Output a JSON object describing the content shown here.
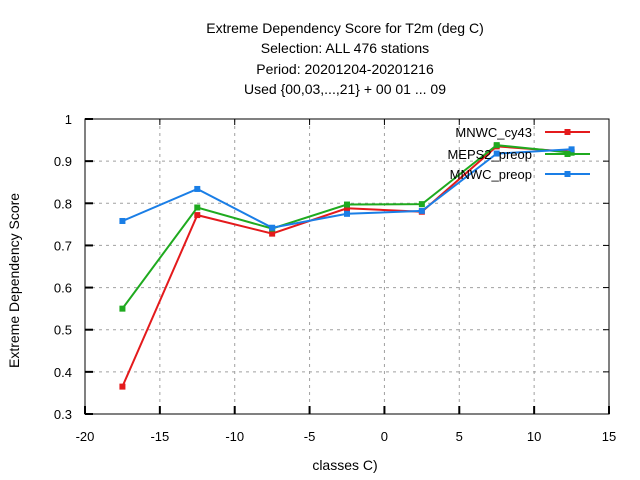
{
  "chart_data": {
    "type": "line",
    "title_lines": [
      "Extreme Dependency Score  for T2m (deg C)",
      "Selection: ALL    476 stations",
      "Period: 20201204-20201216",
      "Used {00,03,...,21} + 00 01 ... 09"
    ],
    "xlabel": "classes C)",
    "ylabel": "Extreme Dependency Score",
    "xlim": [
      -20,
      15
    ],
    "ylim": [
      0.3,
      1.0
    ],
    "x_ticks": [
      -20,
      -15,
      -10,
      -5,
      0,
      5,
      10,
      15
    ],
    "y_ticks": [
      0.3,
      0.4,
      0.5,
      0.6,
      0.7,
      0.8,
      0.9,
      1.0
    ],
    "x_tick_labels": [
      "-20",
      "-15",
      "-10",
      "-5",
      "0",
      "5",
      "10",
      "15"
    ],
    "y_tick_labels": [
      "0.3",
      "0.4",
      "0.5",
      "0.6",
      "0.7",
      "0.8",
      "0.9",
      "1"
    ],
    "grid": true,
    "legend_position": "top-right",
    "series": [
      {
        "name": "MNWC_cy43",
        "color": "#e41a1c",
        "x": [
          -17.5,
          -12.5,
          -7.5,
          -2.5,
          2.5,
          7.5,
          12.5
        ],
        "y": [
          0.365,
          0.772,
          0.728,
          0.788,
          0.78,
          0.935,
          0.922
        ]
      },
      {
        "name": "MEPS2_preop",
        "color": "#1faa1f",
        "x": [
          -17.5,
          -12.5,
          -7.5,
          -2.5,
          2.5,
          7.5,
          12.5
        ],
        "y": [
          0.55,
          0.79,
          0.74,
          0.797,
          0.798,
          0.938,
          0.92
        ]
      },
      {
        "name": "MNWC_preop",
        "color": "#1a7ee6",
        "x": [
          -17.5,
          -12.5,
          -7.5,
          -2.5,
          2.5,
          7.5,
          12.5
        ],
        "y": [
          0.758,
          0.834,
          0.742,
          0.775,
          0.782,
          0.918,
          0.928
        ]
      }
    ]
  }
}
